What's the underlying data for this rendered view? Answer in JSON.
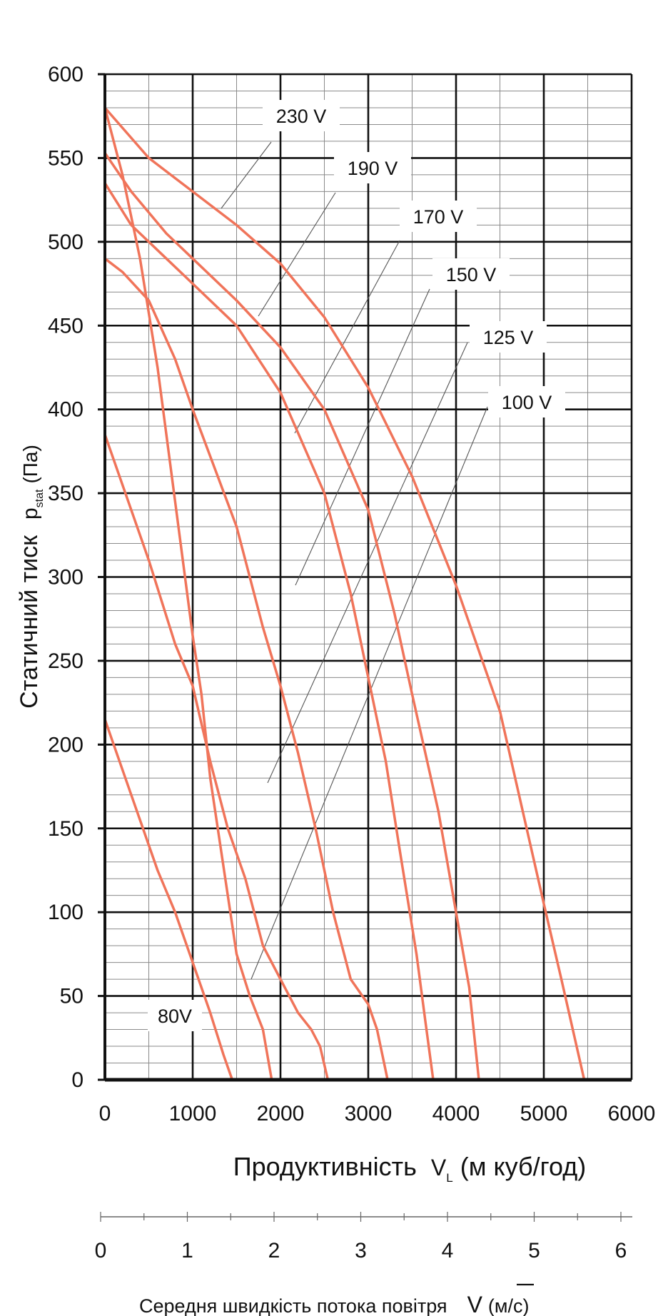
{
  "chart_data": {
    "type": "line",
    "title": "",
    "xlabel": "Продуктивність",
    "xlabel_symbol": "V",
    "xlabel_symbol_sub": "L",
    "xlabel_unit": "(м куб/год)",
    "ylabel": "Статичний тиск",
    "ylabel_symbol": "p",
    "ylabel_symbol_sub": "stat",
    "ylabel_unit": "(Па)",
    "xlim": [
      0,
      6000
    ],
    "ylim": [
      0,
      600
    ],
    "x_ticks": [
      "0",
      "1000",
      "2000",
      "3000",
      "4000",
      "5000",
      "6000"
    ],
    "y_ticks": [
      "0",
      "50",
      "100",
      "150",
      "200",
      "250",
      "300",
      "350",
      "400",
      "450",
      "500",
      "550",
      "600"
    ],
    "secondary_axis": {
      "label": "Середня швидкість потока повітря",
      "symbol": "V",
      "unit": "(м/с)",
      "range": [
        0,
        6
      ],
      "ticks": [
        "0",
        "1",
        "2",
        "3",
        "4",
        "5",
        "6"
      ]
    },
    "grid": true,
    "line_color": "#f0745a",
    "series": [
      {
        "name": "230 V",
        "x": [
          0,
          200,
          500,
          1000,
          1500,
          2000,
          2500,
          3000,
          3500,
          4000,
          4500,
          5000,
          5200,
          5460
        ],
        "y": [
          580,
          568,
          550,
          530,
          510,
          487,
          455,
          413,
          360,
          295,
          220,
          105,
          60,
          0
        ]
      },
      {
        "name": "190 V",
        "x": [
          0,
          300,
          700,
          1000,
          1500,
          2000,
          2500,
          3000,
          3300,
          3500,
          3800,
          4000,
          4150,
          4260
        ],
        "y": [
          553,
          530,
          505,
          490,
          465,
          437,
          400,
          340,
          278,
          230,
          160,
          100,
          55,
          0
        ]
      },
      {
        "name": "170 V",
        "x": [
          0,
          300,
          700,
          1000,
          1500,
          2000,
          2500,
          2800,
          3000,
          3200,
          3350,
          3550,
          3650,
          3740
        ],
        "y": [
          535,
          510,
          490,
          475,
          450,
          410,
          350,
          290,
          240,
          190,
          140,
          75,
          35,
          0
        ]
      },
      {
        "name": "150 V",
        "x": [
          0,
          200,
          500,
          800,
          1000,
          1500,
          1800,
          2000,
          2200,
          2400,
          2600,
          2800,
          3000,
          3100,
          3220
        ],
        "y": [
          490,
          482,
          465,
          430,
          400,
          330,
          270,
          235,
          195,
          150,
          100,
          60,
          45,
          30,
          0
        ]
      },
      {
        "name": "125 V",
        "x": [
          0,
          200,
          500,
          800,
          1000,
          1200,
          1400,
          1600,
          1800,
          2000,
          2200,
          2350,
          2450,
          2540
        ],
        "y": [
          385,
          355,
          310,
          260,
          235,
          190,
          150,
          120,
          80,
          60,
          40,
          30,
          20,
          0
        ]
      },
      {
        "name": "100 V",
        "x": [
          0,
          200,
          400,
          600,
          800,
          1000,
          1100,
          1200,
          1300,
          1400,
          1500,
          1650,
          1800,
          1900
        ],
        "y": [
          580,
          540,
          490,
          425,
          345,
          265,
          230,
          180,
          145,
          110,
          75,
          50,
          30,
          0
        ]
      },
      {
        "name": "80V",
        "x": [
          0,
          200,
          400,
          600,
          800,
          1000,
          1200,
          1350,
          1450
        ],
        "y": [
          215,
          185,
          155,
          125,
          100,
          70,
          40,
          15,
          0
        ]
      }
    ],
    "annotations": [
      "230 V",
      "190 V",
      "170 V",
      "150 V",
      "125 V",
      "100 V",
      "80V"
    ]
  }
}
